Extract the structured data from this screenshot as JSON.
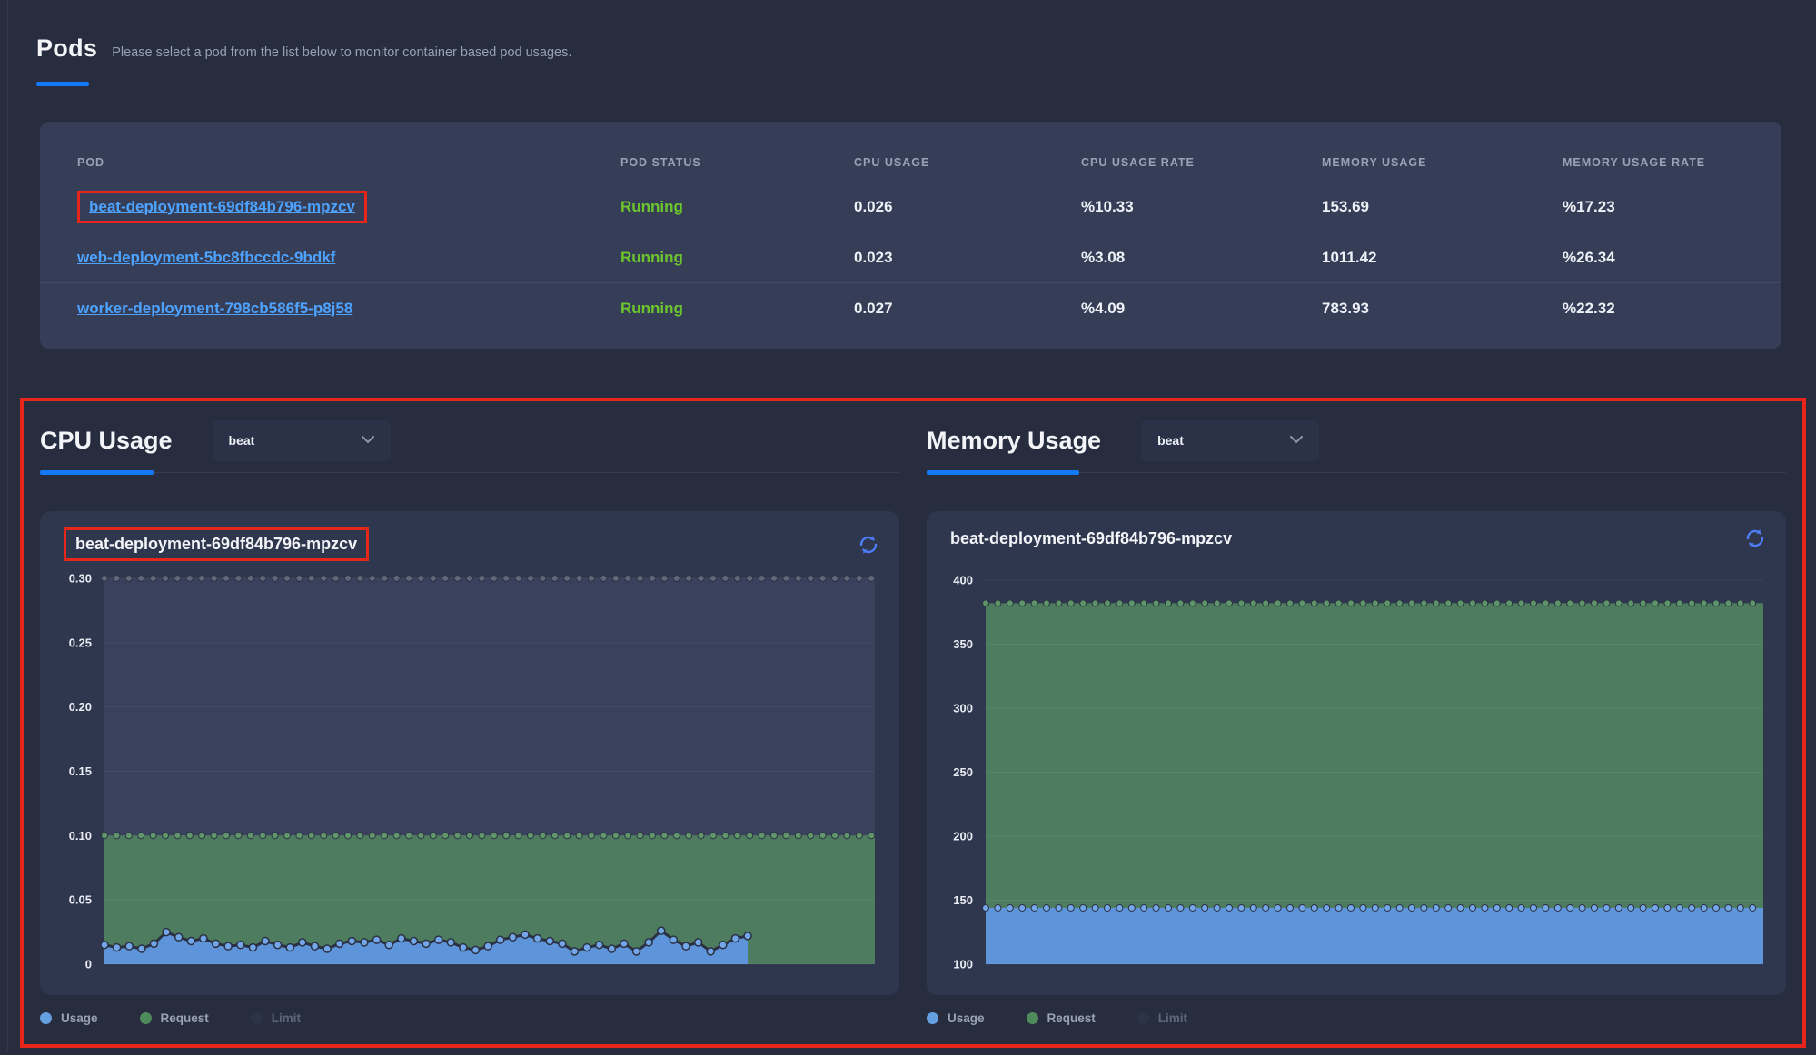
{
  "header": {
    "title": "Pods",
    "subtitle": "Please select a pod from the list below to monitor container based pod usages."
  },
  "table": {
    "columns": [
      "POD",
      "POD STATUS",
      "CPU USAGE",
      "CPU USAGE RATE",
      "MEMORY USAGE",
      "MEMORY USAGE RATE"
    ],
    "rows": [
      {
        "pod": "beat-deployment-69df84b796-mpzcv",
        "status": "Running",
        "cpu_usage": "0.026",
        "cpu_usage_rate": "%10.33",
        "memory_usage": "153.69",
        "memory_usage_rate": "%17.23"
      },
      {
        "pod": "web-deployment-5bc8fbccdc-9bdkf",
        "status": "Running",
        "cpu_usage": "0.023",
        "cpu_usage_rate": "%3.08",
        "memory_usage": "1011.42",
        "memory_usage_rate": "%26.34"
      },
      {
        "pod": "worker-deployment-798cb586f5-p8j58",
        "status": "Running",
        "cpu_usage": "0.027",
        "cpu_usage_rate": "%4.09",
        "memory_usage": "783.93",
        "memory_usage_rate": "%22.32"
      }
    ]
  },
  "cpu_section": {
    "title": "CPU Usage",
    "dropdown_value": "beat",
    "card_title": "beat-deployment-69df84b796-mpzcv",
    "legend": [
      {
        "label": "Usage",
        "color": "#64a0e0"
      },
      {
        "label": "Request",
        "color": "#4f8a5c"
      },
      {
        "label": "Limit",
        "color": "#2c3347"
      }
    ]
  },
  "memory_section": {
    "title": "Memory Usage",
    "dropdown_value": "beat",
    "card_title": "beat-deployment-69df84b796-mpzcv",
    "legend": [
      {
        "label": "Usage",
        "color": "#64a0e0"
      },
      {
        "label": "Request",
        "color": "#4f8a5c"
      },
      {
        "label": "Limit",
        "color": "#2c3347"
      }
    ]
  },
  "colors": {
    "accent_blue": "#1479f7",
    "link_blue": "#4da3ff",
    "status_green": "#6cc52d",
    "annotation_red": "#e8251a",
    "refresh_blue": "#4d7ef7",
    "usage_blue_fill": "#5d94da",
    "request_green_fill": "#4e7c5f",
    "limit_grey_fill": "#3a415c"
  },
  "chart_data": [
    {
      "type": "area",
      "title": "beat-deployment-69df84b796-mpzcv",
      "ylim": [
        0,
        0.3
      ],
      "yticks": [
        0,
        0.05,
        0.1,
        0.15,
        0.2,
        0.25,
        0.3
      ],
      "ytick_labels": [
        "0",
        "0.05",
        "0.10",
        "0.15",
        "0.20",
        "0.25",
        "0.30"
      ],
      "xlabel": "",
      "ylabel": "",
      "grid": true,
      "legend_position": "bottom",
      "series": [
        {
          "name": "Limit",
          "constant": true,
          "value": 0.3,
          "fill": "#3a415c",
          "marker": "#5d6478"
        },
        {
          "name": "Request",
          "constant": true,
          "value": 0.1,
          "fill": "#4e7c5f",
          "marker": "#5d9468"
        },
        {
          "name": "Usage",
          "span": 0.835,
          "fill": "#5d94da",
          "marker": "#74a7ea",
          "values": [
            0.015,
            0.013,
            0.014,
            0.012,
            0.016,
            0.025,
            0.021,
            0.018,
            0.02,
            0.016,
            0.014,
            0.015,
            0.013,
            0.018,
            0.015,
            0.013,
            0.017,
            0.014,
            0.012,
            0.016,
            0.018,
            0.017,
            0.019,
            0.015,
            0.02,
            0.018,
            0.016,
            0.019,
            0.017,
            0.013,
            0.011,
            0.014,
            0.019,
            0.021,
            0.023,
            0.02,
            0.018,
            0.016,
            0.01,
            0.013,
            0.015,
            0.012,
            0.016,
            0.01,
            0.017,
            0.026,
            0.019,
            0.014,
            0.017,
            0.01,
            0.015,
            0.02,
            0.022
          ]
        }
      ]
    },
    {
      "type": "area",
      "title": "beat-deployment-69df84b796-mpzcv",
      "ylim": [
        100,
        400
      ],
      "yticks": [
        100,
        150,
        200,
        250,
        300,
        350,
        400
      ],
      "ytick_labels": [
        "100",
        "150",
        "200",
        "250",
        "300",
        "350",
        "400"
      ],
      "xlabel": "",
      "ylabel": "",
      "grid": true,
      "legend_position": "bottom",
      "series": [
        {
          "name": "Request",
          "constant": true,
          "value": 382,
          "fill": "#4e7c5f",
          "marker": "#5d9468"
        },
        {
          "name": "Usage",
          "constant": true,
          "value": 144,
          "fill": "#5d94da",
          "marker": "#74a7ea"
        }
      ]
    }
  ]
}
